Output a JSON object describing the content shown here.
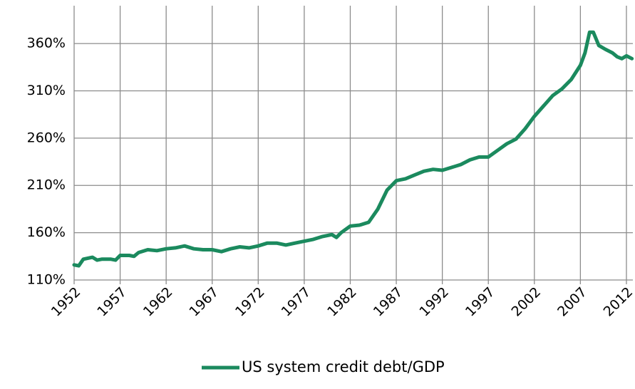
{
  "chart_data": {
    "type": "line",
    "x": [
      1952,
      1952.5,
      1953,
      1954,
      1954.5,
      1955,
      1956,
      1956.5,
      1957,
      1958,
      1958.5,
      1959,
      1960,
      1961,
      1962,
      1963,
      1964,
      1965,
      1966,
      1967,
      1968,
      1969,
      1970,
      1971,
      1972,
      1973,
      1974,
      1975,
      1976,
      1977,
      1978,
      1979,
      1980,
      1980.5,
      1981,
      1982,
      1983,
      1984,
      1985,
      1986,
      1987,
      1988,
      1989,
      1990,
      1991,
      1992,
      1993,
      1994,
      1995,
      1996,
      1997,
      1998,
      1999,
      2000,
      2001,
      2002,
      2003,
      2004,
      2005,
      2006,
      2007,
      2007.5,
      2008,
      2008.4,
      2009,
      2009.7,
      2010.5,
      2011,
      2011.5,
      2012,
      2012.6
    ],
    "series": [
      {
        "name": "US system credit debt/GDP",
        "color": "#1b8a5e",
        "values": [
          126,
          125,
          132,
          134,
          131,
          132,
          132,
          131,
          136,
          136,
          135,
          139,
          142,
          141,
          143,
          144,
          146,
          143,
          142,
          142,
          140,
          143,
          145,
          144,
          146,
          149,
          149,
          147,
          149,
          151,
          153,
          156,
          158,
          155,
          160,
          167,
          168,
          171,
          185,
          205,
          215,
          217,
          221,
          225,
          227,
          226,
          229,
          232,
          237,
          240,
          240,
          247,
          254,
          259,
          270,
          283,
          294,
          305,
          312,
          322,
          337,
          350,
          372,
          372,
          358,
          354,
          350,
          346,
          344,
          347,
          344
        ]
      }
    ],
    "xlim": [
      1952,
      2012.7
    ],
    "xticks": [
      1952,
      1957,
      1962,
      1967,
      1972,
      1977,
      1982,
      1987,
      1992,
      1997,
      2002,
      2007,
      2012
    ],
    "ylim": [
      110,
      400
    ],
    "yticks": [
      {
        "value": 110,
        "label": "110%"
      },
      {
        "value": 160,
        "label": "160%"
      },
      {
        "value": 210,
        "label": "210%"
      },
      {
        "value": 260,
        "label": "260%"
      },
      {
        "value": 310,
        "label": "310%"
      },
      {
        "value": 360,
        "label": "360%"
      }
    ],
    "grid": true,
    "legend": "bottom"
  }
}
